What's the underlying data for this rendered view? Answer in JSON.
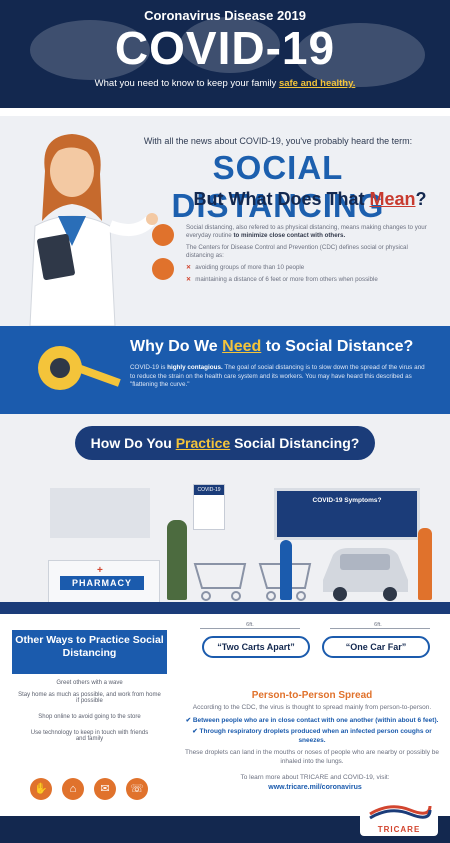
{
  "header": {
    "pretitle": "Coronavirus Disease 2019",
    "title": "COVID-19",
    "tagline_prefix": "What you need to know to keep your family ",
    "tagline_emphasis": "safe and healthy."
  },
  "social_distancing": {
    "intro": "With all the news about COVID-19, you've probably heard the term:",
    "title": "SOCIAL DISTANCING",
    "question_prefix": "But What Does That ",
    "question_emphasis": "Mean",
    "question_suffix": "?",
    "para1_prefix": "Social distancing, also refered to as physical distancing, means making changes to your everyday routine ",
    "para1_emphasis": "to minimize close contact with others.",
    "para2": "The Centers for Disease Control and Prevention (CDC) defines social or physical distancing as:",
    "bullets": [
      "avoiding groups of more than 10 people",
      "maintaining a distance of 6 feet or more from others when possible"
    ]
  },
  "why": {
    "title_prefix": "Why Do We ",
    "title_emphasis": "Need",
    "title_suffix": " to Social Distance?",
    "para_a": "COVID-19 is ",
    "para_b": "highly contagious.",
    "para_c": " The goal of social distancing is to slow down the spread of the virus and to reduce the strain on the health care system and its workers. You may have heard this described as \"flattening the curve.\""
  },
  "practice": {
    "title_prefix": "How Do You ",
    "title_emphasis": "Practice",
    "title_suffix": " Social Distancing?",
    "pharmacy_sign": "PHARMACY",
    "poster_label": "COVID-19",
    "tv_label": "COVID-19 Symptoms?"
  },
  "other_ways": {
    "title": "Other Ways to Practice Social Distancing",
    "items": [
      "Greet others with a wave",
      "Stay home as much as possible, and work from home if possible",
      "Shop online to avoid going to the store",
      "Use technology to keep in touch with friends and family"
    ]
  },
  "distances": {
    "carts_measure": "6ft.",
    "cars_measure": "6ft.",
    "carts_label": "“Two Carts Apart”",
    "cars_label": "“One Car Far”"
  },
  "person_to_person": {
    "title": "Person-to-Person Spread",
    "para": "According to the CDC, the virus is thought to spread mainly from person-to-person.",
    "bullets": [
      "Between people who are in close contact with one another (within about 6 feet).",
      "Through respiratory droplets produced when an infected person coughs or sneezes."
    ],
    "para2": "These droplets can land in the mouths or noses of people who are nearby or possibly be inhaled into the lungs."
  },
  "footer": {
    "learn_more": "To learn more about TRICARE and COVID-19, visit:",
    "url": "www.tricare.mil/coronavirus",
    "logo_text": "TRICARE"
  },
  "colors": {
    "navy": "#13284f",
    "blue": "#1b5bad",
    "orange": "#e0722c",
    "yellow": "#f4c43a"
  }
}
